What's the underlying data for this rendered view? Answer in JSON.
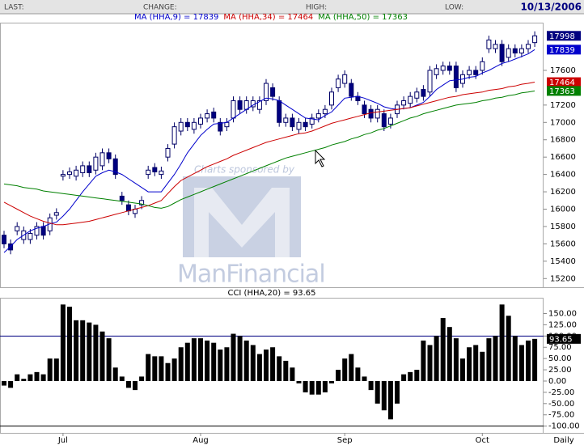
{
  "header": {
    "last": "LAST:",
    "change": "CHANGE:",
    "high": "HIGH:",
    "low": "LOW:",
    "date": "10/13/2006"
  },
  "watermark": {
    "sponsor": "Charts sponsored by",
    "brand": "ManFinancial"
  },
  "chart_data": [
    {
      "type": "candlestick",
      "up_color": "#ffffff",
      "down_color": "#000080",
      "border_color": "#000066",
      "open": [
        15700,
        15600,
        15750,
        15650,
        15650,
        15700,
        15800,
        15750,
        15930,
        16380,
        16400,
        16380,
        16420,
        16500,
        16450,
        16500,
        16650,
        16580,
        16150,
        16050,
        15950,
        16050,
        16400,
        16480,
        16400,
        16600,
        16750,
        16900,
        17000,
        16920,
        16980,
        17050,
        17120,
        17000,
        16950,
        17050,
        17250,
        17150,
        17180,
        17150,
        17250,
        17400,
        17250,
        17000,
        17050,
        16920,
        17000,
        16980,
        17050,
        17100,
        17200,
        17400,
        17450,
        17450,
        17300,
        17200,
        17150,
        17050,
        17100,
        16980,
        17100,
        17200,
        17220,
        17280,
        17380,
        17350,
        17550,
        17600,
        17650,
        17650,
        17450,
        17550,
        17600,
        17600,
        17850,
        17850,
        17900,
        17750,
        17850,
        17800,
        17850,
        17920
      ],
      "high": [
        15750,
        15650,
        15850,
        15800,
        15770,
        15850,
        15850,
        15950,
        16010,
        16450,
        16480,
        16500,
        16550,
        16550,
        16650,
        16700,
        16700,
        16630,
        16200,
        16100,
        16050,
        16150,
        16500,
        16530,
        16490,
        16750,
        17000,
        17050,
        17050,
        17050,
        17100,
        17150,
        17170,
        17050,
        17050,
        17300,
        17300,
        17300,
        17300,
        17300,
        17500,
        17450,
        17300,
        17100,
        17100,
        17050,
        17050,
        17100,
        17150,
        17200,
        17400,
        17550,
        17600,
        17500,
        17350,
        17250,
        17200,
        17200,
        17150,
        17100,
        17250,
        17300,
        17350,
        17400,
        17430,
        17650,
        17670,
        17700,
        17700,
        17700,
        17600,
        17650,
        17650,
        17750,
        18000,
        17950,
        17950,
        17900,
        17900,
        17900,
        17950,
        18050
      ],
      "low": [
        15550,
        15480,
        15700,
        15600,
        15600,
        15650,
        15650,
        15700,
        15880,
        16330,
        16350,
        16330,
        16370,
        16370,
        16400,
        16450,
        16530,
        16350,
        16050,
        15930,
        15900,
        16000,
        16350,
        16380,
        16350,
        16550,
        16700,
        16850,
        16900,
        16870,
        16930,
        17000,
        17000,
        16850,
        16900,
        17000,
        17100,
        17100,
        17130,
        17100,
        17200,
        17250,
        16950,
        16950,
        16900,
        16870,
        16900,
        16930,
        17000,
        17050,
        17150,
        17350,
        17400,
        17250,
        17200,
        17050,
        17000,
        17000,
        16900,
        16930,
        17050,
        17150,
        17170,
        17230,
        17250,
        17300,
        17500,
        17550,
        17550,
        17350,
        17400,
        17500,
        17500,
        17550,
        17800,
        17800,
        17650,
        17700,
        17750,
        17750,
        17800,
        17870
      ],
      "close": [
        15600,
        15530,
        15800,
        15750,
        15720,
        15800,
        15700,
        15900,
        15960,
        16400,
        16430,
        16450,
        16500,
        16420,
        16600,
        16650,
        16580,
        16400,
        16100,
        15980,
        16000,
        16100,
        16450,
        16430,
        16440,
        16700,
        16950,
        17000,
        16950,
        17000,
        17050,
        17100,
        17050,
        16900,
        17000,
        17250,
        17150,
        17250,
        17250,
        17250,
        17450,
        17300,
        17000,
        17050,
        16950,
        17000,
        16950,
        17050,
        17100,
        17150,
        17350,
        17500,
        17550,
        17300,
        17250,
        17100,
        17050,
        17150,
        16950,
        17050,
        17200,
        17250,
        17300,
        17350,
        17300,
        17600,
        17620,
        17650,
        17600,
        17400,
        17550,
        17600,
        17550,
        17700,
        17950,
        17900,
        17700,
        17850,
        17800,
        17850,
        17900,
        17998
      ],
      "series": [
        {
          "name": "MA (HHA,9) = 17839",
          "color": "#0000cc",
          "values": [
            15500,
            15570,
            15650,
            15700,
            15750,
            15780,
            15800,
            15830,
            15850,
            15920,
            16000,
            16100,
            16200,
            16290,
            16380,
            16420,
            16450,
            16430,
            16400,
            16350,
            16300,
            16250,
            16200,
            16200,
            16200,
            16300,
            16400,
            16520,
            16650,
            16750,
            16850,
            16920,
            16980,
            16990,
            17000,
            17050,
            17100,
            17150,
            17200,
            17240,
            17280,
            17270,
            17250,
            17200,
            17150,
            17100,
            17050,
            17040,
            17030,
            17080,
            17120,
            17200,
            17280,
            17290,
            17300,
            17280,
            17250,
            17220,
            17180,
            17160,
            17150,
            17160,
            17170,
            17200,
            17230,
            17300,
            17380,
            17430,
            17480,
            17490,
            17500,
            17520,
            17530,
            17570,
            17600,
            17640,
            17680,
            17700,
            17730,
            17760,
            17790,
            17839
          ]
        },
        {
          "name": "MA (HHA,34) = 17464",
          "color": "#cc0000",
          "values": [
            16080,
            16040,
            16000,
            15960,
            15920,
            15890,
            15860,
            15840,
            15820,
            15820,
            15830,
            15840,
            15850,
            15860,
            15880,
            15900,
            15920,
            15940,
            15960,
            15980,
            16000,
            16020,
            16040,
            16070,
            16100,
            16180,
            16260,
            16330,
            16370,
            16410,
            16450,
            16490,
            16520,
            16550,
            16580,
            16620,
            16650,
            16680,
            16710,
            16740,
            16770,
            16790,
            16810,
            16830,
            16850,
            16870,
            16880,
            16900,
            16930,
            16960,
            16990,
            17010,
            17030,
            17050,
            17070,
            17090,
            17110,
            17120,
            17130,
            17140,
            17150,
            17160,
            17170,
            17190,
            17210,
            17230,
            17250,
            17270,
            17290,
            17300,
            17320,
            17330,
            17340,
            17350,
            17370,
            17380,
            17390,
            17410,
            17420,
            17440,
            17450,
            17464
          ]
        },
        {
          "name": "MA (HHA,50) = 17363",
          "color": "#008000",
          "values": [
            16290,
            16280,
            16270,
            16250,
            16240,
            16230,
            16210,
            16200,
            16190,
            16180,
            16170,
            16160,
            16150,
            16140,
            16130,
            16120,
            16110,
            16100,
            16090,
            16080,
            16070,
            16060,
            16040,
            16020,
            16010,
            16030,
            16070,
            16110,
            16140,
            16170,
            16200,
            16230,
            16260,
            16290,
            16320,
            16350,
            16380,
            16410,
            16440,
            16470,
            16500,
            16530,
            16560,
            16590,
            16610,
            16630,
            16650,
            16670,
            16690,
            16710,
            16740,
            16760,
            16780,
            16810,
            16830,
            16860,
            16880,
            16910,
            16930,
            16960,
            16990,
            17020,
            17050,
            17070,
            17100,
            17120,
            17140,
            17160,
            17180,
            17200,
            17210,
            17220,
            17230,
            17250,
            17260,
            17280,
            17290,
            17310,
            17320,
            17340,
            17350,
            17363
          ]
        }
      ],
      "ylim": [
        15100,
        18150
      ],
      "yticks": [
        15200,
        15400,
        15600,
        15800,
        16000,
        16200,
        16400,
        16600,
        16800,
        17000,
        17200,
        17600
      ]
    },
    {
      "type": "bar",
      "title": "CCI (HHA,20) = 93.65",
      "color": "#000000",
      "values": [
        -10,
        -15,
        15,
        5,
        15,
        20,
        15,
        50,
        50,
        170,
        165,
        135,
        135,
        130,
        125,
        110,
        95,
        30,
        10,
        -15,
        -20,
        10,
        60,
        55,
        55,
        40,
        50,
        75,
        85,
        95,
        95,
        90,
        85,
        70,
        75,
        105,
        100,
        90,
        80,
        60,
        70,
        75,
        55,
        45,
        30,
        -5,
        -25,
        -30,
        -30,
        -25,
        -5,
        25,
        50,
        60,
        30,
        10,
        -20,
        -50,
        -65,
        -85,
        -50,
        15,
        20,
        25,
        90,
        80,
        100,
        140,
        120,
        95,
        50,
        75,
        80,
        65,
        95,
        100,
        170,
        145,
        100,
        80,
        90,
        93.65
      ],
      "categories": [
        null,
        null,
        null,
        null,
        null,
        null,
        null,
        null,
        null,
        "Jul",
        null,
        null,
        null,
        null,
        null,
        null,
        null,
        null,
        null,
        null,
        null,
        null,
        null,
        null,
        null,
        null,
        null,
        null,
        null,
        null,
        "Aug",
        null,
        null,
        null,
        null,
        null,
        null,
        null,
        null,
        null,
        null,
        null,
        null,
        null,
        null,
        null,
        null,
        null,
        null,
        null,
        null,
        null,
        "Sep",
        null,
        null,
        null,
        null,
        null,
        null,
        null,
        null,
        null,
        null,
        null,
        null,
        null,
        null,
        null,
        null,
        null,
        null,
        null,
        null,
        "Oct",
        null,
        null,
        null,
        null,
        null,
        null,
        null,
        null
      ],
      "xlabel": "Daily",
      "hlines": [
        100,
        -100
      ],
      "ylim": [
        -115,
        185
      ],
      "yticks": [
        {
          "value": 150,
          "label": "150.00"
        },
        {
          "value": 125,
          "label": "125.00"
        },
        {
          "value": 100,
          "label": "100.00"
        },
        {
          "value": 75,
          "label": "75.00"
        },
        {
          "value": 50,
          "label": "50.00"
        },
        {
          "value": 25,
          "label": "25.00"
        },
        {
          "value": 0,
          "label": "0.00"
        },
        {
          "value": -25,
          "label": "-25.00"
        },
        {
          "value": -50,
          "label": "-50.00"
        },
        {
          "value": -75,
          "label": "-75.00"
        },
        {
          "value": -100,
          "label": "-100.00"
        }
      ]
    }
  ]
}
